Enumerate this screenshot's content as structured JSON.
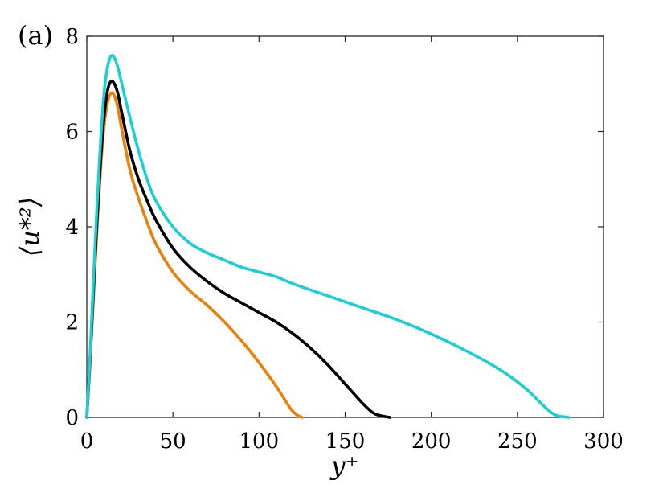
{
  "chart_data": {
    "type": "line",
    "panel_label": "(a)",
    "xlabel": "y⁺",
    "ylabel": "⟨u*²⟩",
    "xlim": [
      0,
      300
    ],
    "ylim": [
      0,
      8
    ],
    "xticks": [
      0,
      50,
      100,
      150,
      200,
      250,
      300
    ],
    "yticks": [
      0,
      2,
      4,
      6,
      8
    ],
    "grid": false,
    "series": [
      {
        "color": "#e8820c",
        "points": [
          [
            0,
            0
          ],
          [
            2,
            1.2
          ],
          [
            4,
            2.6
          ],
          [
            6,
            4.0
          ],
          [
            8,
            5.2
          ],
          [
            10,
            6.1
          ],
          [
            12,
            6.6
          ],
          [
            14,
            6.8
          ],
          [
            16,
            6.75
          ],
          [
            18,
            6.5
          ],
          [
            20,
            6.1
          ],
          [
            25,
            5.2
          ],
          [
            30,
            4.6
          ],
          [
            35,
            4.1
          ],
          [
            40,
            3.65
          ],
          [
            50,
            3.05
          ],
          [
            60,
            2.65
          ],
          [
            70,
            2.35
          ],
          [
            80,
            2.0
          ],
          [
            90,
            1.6
          ],
          [
            100,
            1.15
          ],
          [
            110,
            0.65
          ],
          [
            118,
            0.2
          ],
          [
            122,
            0.05
          ],
          [
            125,
            0
          ]
        ]
      },
      {
        "color": "#000000",
        "points": [
          [
            0,
            0
          ],
          [
            2,
            1.3
          ],
          [
            4,
            2.8
          ],
          [
            6,
            4.2
          ],
          [
            8,
            5.4
          ],
          [
            10,
            6.3
          ],
          [
            12,
            6.85
          ],
          [
            14,
            7.05
          ],
          [
            16,
            7.0
          ],
          [
            18,
            6.8
          ],
          [
            20,
            6.45
          ],
          [
            25,
            5.6
          ],
          [
            30,
            5.0
          ],
          [
            35,
            4.55
          ],
          [
            40,
            4.15
          ],
          [
            50,
            3.55
          ],
          [
            60,
            3.15
          ],
          [
            70,
            2.85
          ],
          [
            80,
            2.6
          ],
          [
            90,
            2.4
          ],
          [
            100,
            2.2
          ],
          [
            110,
            2.0
          ],
          [
            120,
            1.75
          ],
          [
            130,
            1.45
          ],
          [
            140,
            1.1
          ],
          [
            150,
            0.7
          ],
          [
            160,
            0.3
          ],
          [
            166,
            0.1
          ],
          [
            170,
            0.04
          ],
          [
            176,
            0
          ]
        ]
      },
      {
        "color": "#1ccfd6",
        "points": [
          [
            0,
            0
          ],
          [
            2,
            1.4
          ],
          [
            4,
            3.0
          ],
          [
            6,
            4.5
          ],
          [
            8,
            5.8
          ],
          [
            10,
            6.8
          ],
          [
            12,
            7.35
          ],
          [
            14,
            7.58
          ],
          [
            16,
            7.55
          ],
          [
            18,
            7.35
          ],
          [
            20,
            7.05
          ],
          [
            25,
            6.3
          ],
          [
            30,
            5.6
          ],
          [
            35,
            5.0
          ],
          [
            40,
            4.55
          ],
          [
            50,
            4.0
          ],
          [
            60,
            3.65
          ],
          [
            70,
            3.45
          ],
          [
            80,
            3.3
          ],
          [
            90,
            3.15
          ],
          [
            100,
            3.05
          ],
          [
            110,
            2.95
          ],
          [
            120,
            2.8
          ],
          [
            140,
            2.55
          ],
          [
            160,
            2.3
          ],
          [
            180,
            2.05
          ],
          [
            200,
            1.75
          ],
          [
            220,
            1.4
          ],
          [
            240,
            1.0
          ],
          [
            255,
            0.6
          ],
          [
            265,
            0.25
          ],
          [
            272,
            0.05
          ],
          [
            280,
            0
          ]
        ]
      }
    ]
  }
}
